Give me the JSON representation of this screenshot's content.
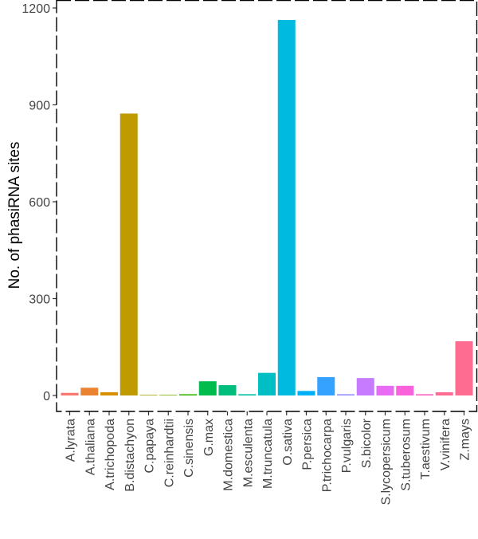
{
  "chart_data": {
    "type": "bar",
    "title": "",
    "xlabel": "",
    "ylabel": "No. of phasiRNA sites",
    "ylim": [
      0,
      1200
    ],
    "yticks": [
      0,
      300,
      600,
      900,
      1200
    ],
    "grid": false,
    "legend": "none",
    "categories": [
      "A.lyrata",
      "A.thaliana",
      "A.trichopoda",
      "B.distachyon",
      "C.papaya",
      "C.reinhardtii",
      "C.sinensis",
      "G.max",
      "M.domestica",
      "M.esculenta",
      "M.truncatula",
      "O.sativa",
      "P.persica",
      "P.trichocarpa",
      "P.vulgaris",
      "S.bicolor",
      "S.lycopersicum",
      "S.tuberosum",
      "T.aestivum",
      "V.vinifera",
      "Z.mays"
    ],
    "values": [
      8,
      24,
      10,
      873,
      2,
      2,
      4,
      44,
      32,
      4,
      70,
      1163,
      14,
      57,
      4,
      54,
      30,
      30,
      4,
      10,
      168
    ],
    "colors": [
      "#F8766D",
      "#EA8331",
      "#D89000",
      "#C09B00",
      "#A3A500",
      "#7CAE00",
      "#39B600",
      "#00BB4E",
      "#00BF7D",
      "#00C1A3",
      "#00BFC4",
      "#00BAE0",
      "#00B0F6",
      "#35A2FF",
      "#9590FF",
      "#C77CFF",
      "#E76BF3",
      "#FA62DB",
      "#FF62BC",
      "#FF6C91",
      "#FF6C91"
    ]
  }
}
